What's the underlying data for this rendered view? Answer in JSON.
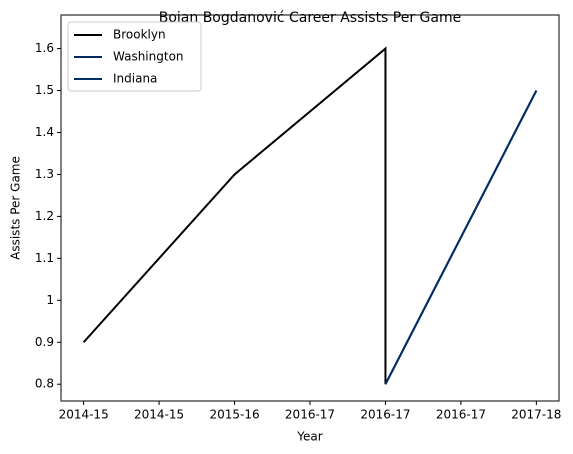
{
  "chart_data": {
    "type": "line",
    "title": "Bojan Bogdanović Career Assists Per Game",
    "x_label": "Year",
    "y_label": "Assists Per Game",
    "series": [
      {
        "name": "Brooklyn",
        "color": "#000000",
        "x": [
          0,
          1,
          2,
          2
        ],
        "values": [
          0.9,
          1.3,
          1.6,
          0.8
        ]
      },
      {
        "name": "Washington",
        "color": "#002b5c",
        "x": [
          2,
          3
        ],
        "values": [
          0.8,
          1.5
        ]
      },
      {
        "name": "Indiana",
        "color": "#002d62",
        "x": [
          2,
          3
        ],
        "values": [
          0.8,
          1.5
        ]
      }
    ],
    "xlim": [
      -0.15,
      3.15
    ],
    "xticks": [
      {
        "value": 0,
        "label": "2014-15"
      },
      {
        "value": 0.5,
        "label": "2014-15"
      },
      {
        "value": 1,
        "label": "2015-16"
      },
      {
        "value": 1.5,
        "label": "2016-17"
      },
      {
        "value": 2,
        "label": "2016-17"
      },
      {
        "value": 2.5,
        "label": "2016-17"
      },
      {
        "value": 3,
        "label": "2017-18"
      }
    ],
    "ylim": [
      0.76,
      1.68
    ],
    "yticks": [
      0.8,
      0.9,
      1.0,
      1.1,
      1.2,
      1.3,
      1.4,
      1.5,
      1.6
    ],
    "legend": "upper left"
  }
}
